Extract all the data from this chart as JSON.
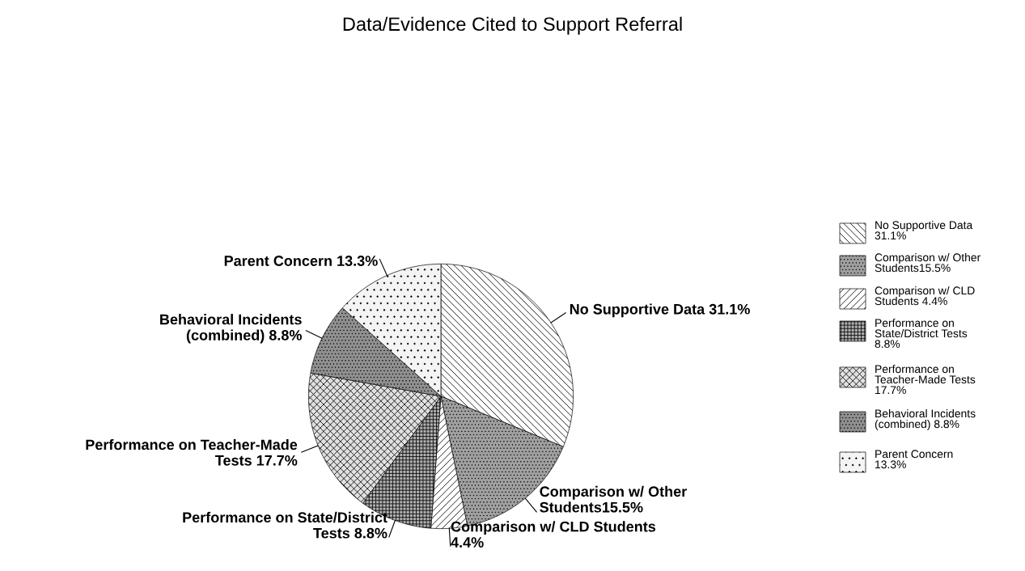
{
  "chart_data": {
    "type": "pie",
    "title": "Data/Evidence Cited to Support Referral",
    "categories": [
      "No Supportive Data\n31.1%",
      "Comparison w/ Other\nStudents15.5%",
      "Comparison w/ CLD\nStudents 4.4%",
      "Performance on\nState/District Tests\n8.8%",
      "Performance on\nTeacher-Made Tests\n17.7%",
      "Behavioral Incidents\n(combined) 8.8%",
      "Parent Concern\n13.3%"
    ],
    "values": [
      31.1,
      15.5,
      4.4,
      8.8,
      17.7,
      8.8,
      13.3
    ],
    "value_labels": [
      "No Supportive Data 31.1%",
      "Comparison w/ Other\nStudents15.5%",
      "Comparison w/ CLD Students\n4.4%",
      "Performance on State/District\nTests 8.8%",
      "Performance on Teacher-Made\nTests 17.7%",
      "Behavioral Incidents\n(combined) 8.8%",
      "Parent Concern 13.3%"
    ],
    "colors": [
      "#ffffff",
      "#a0a0a0",
      "#ffffff",
      "#b0b0b0",
      "#e0e0e0",
      "#909090",
      "#f4f4f4"
    ],
    "legend": "right"
  }
}
